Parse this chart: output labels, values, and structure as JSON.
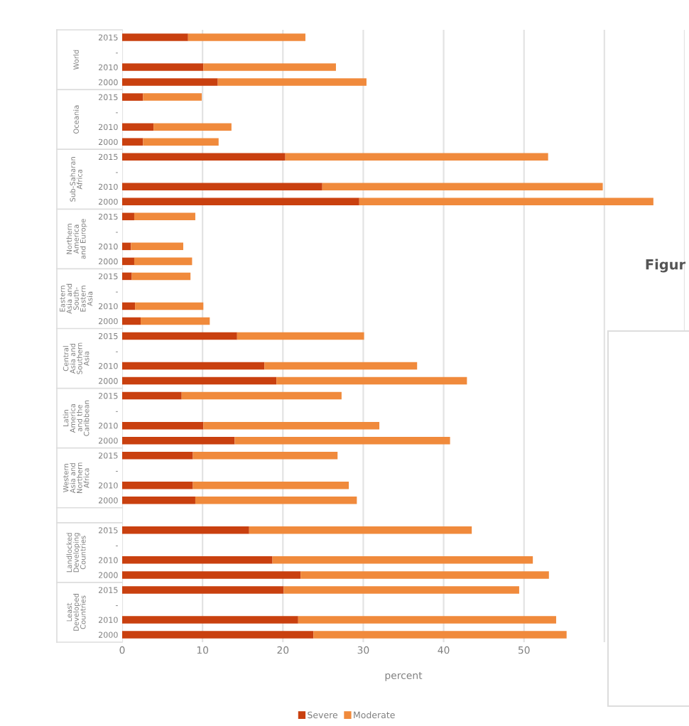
{
  "chart_data": {
    "type": "bar",
    "orientation": "horizontal",
    "stacked": true,
    "categories": [
      "2015",
      "-",
      "2010",
      "2000",
      "2015",
      "-",
      "2010",
      "2000",
      "2015",
      "-",
      "2010",
      "2000",
      "2015",
      "-",
      "2010",
      "2000",
      "2015",
      "-",
      "2010",
      "2000",
      "2015",
      "-",
      "2010",
      "2000",
      "2015",
      "-",
      "2010",
      "2000",
      "2015",
      "-",
      "2010",
      "2000",
      null,
      "2015",
      "-",
      "2010",
      "2000",
      "2015",
      "-",
      "2010",
      "2000"
    ],
    "series": [
      {
        "name": "Severe",
        "color": "#c9400f",
        "values": [
          8.2,
          null,
          10.1,
          11.9,
          2.6,
          null,
          3.9,
          2.6,
          20.3,
          null,
          24.9,
          29.5,
          1.5,
          null,
          1.1,
          1.5,
          1.2,
          null,
          1.6,
          2.3,
          14.3,
          null,
          17.7,
          19.2,
          7.4,
          null,
          10.1,
          14.0,
          8.8,
          null,
          8.8,
          9.1,
          null,
          15.8,
          null,
          18.7,
          22.2,
          20.1,
          null,
          21.9,
          23.8
        ]
      },
      {
        "name": "Moderate",
        "color": "#f08a3c",
        "values": [
          14.6,
          null,
          16.5,
          18.5,
          7.3,
          null,
          9.7,
          9.4,
          32.7,
          null,
          34.9,
          36.6,
          7.6,
          null,
          6.5,
          7.2,
          7.3,
          null,
          8.5,
          8.6,
          15.8,
          null,
          19.0,
          23.7,
          19.9,
          null,
          21.9,
          26.8,
          18.0,
          null,
          19.4,
          20.1,
          null,
          27.7,
          null,
          32.4,
          30.9,
          29.3,
          null,
          32.1,
          31.5
        ]
      }
    ],
    "xlabel": "percent",
    "xlim": [
      0,
      70
    ],
    "xticks": [
      0,
      10,
      20,
      30,
      40,
      50,
      {
        "value": 60,
        "label": null
      },
      {
        "value": 70,
        "label": null
      }
    ],
    "grid": "x",
    "legend": "bottom",
    "annotations": [
      "World",
      "Oceania",
      "Sub-Saharan\nAfrica",
      "Northern\nAmerica\nand Europe",
      "Eastern\nAsia and\nSouth-\nEastern\nAsia",
      "Central\nAsia and\nSouthern\nAsia",
      "Latin\nAmerica\nand the\nCaribbean",
      "Western\nAsia and\nNorthern\nAfrica",
      "Landlocked\nDeveloping\nCountries",
      "Least\nDeveloped\nCountries",
      "Figur"
    ]
  }
}
